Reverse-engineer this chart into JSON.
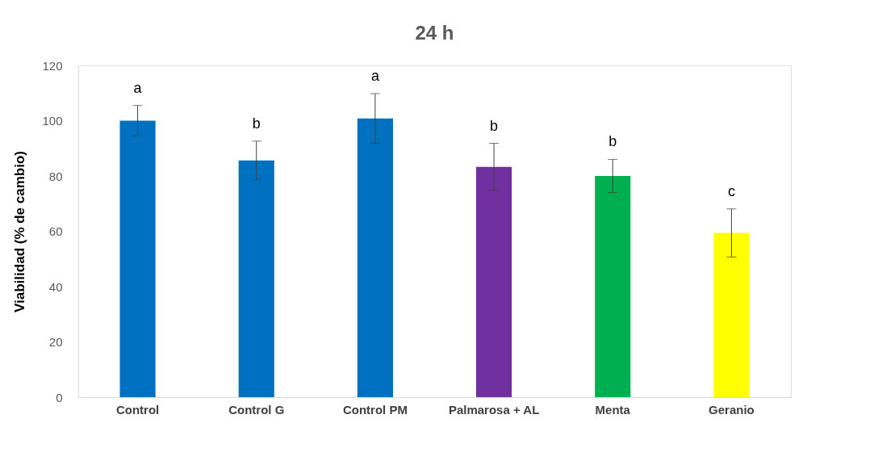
{
  "chart_data": {
    "type": "bar",
    "title": "24 h",
    "ylabel": "Viabilidad  (% de cambio)",
    "categories": [
      "Control",
      "Control G",
      "Control PM",
      "Palmarosa + AL",
      "Menta",
      "Geranio"
    ],
    "values": [
      100,
      85.6,
      100.8,
      83.3,
      80,
      59.4
    ],
    "colors": [
      "#0070c0",
      "#0070c0",
      "#0070c0",
      "#7030a0",
      "#00b050",
      "#ffff00"
    ],
    "errors": [
      5.5,
      7,
      9,
      8.5,
      6,
      8.7
    ],
    "ylim": [
      0,
      120
    ],
    "yticks": [
      0,
      20,
      40,
      60,
      80,
      100,
      120
    ],
    "grid": false,
    "annotations": [
      "a",
      "b",
      "a",
      "b",
      "b",
      "c"
    ]
  }
}
